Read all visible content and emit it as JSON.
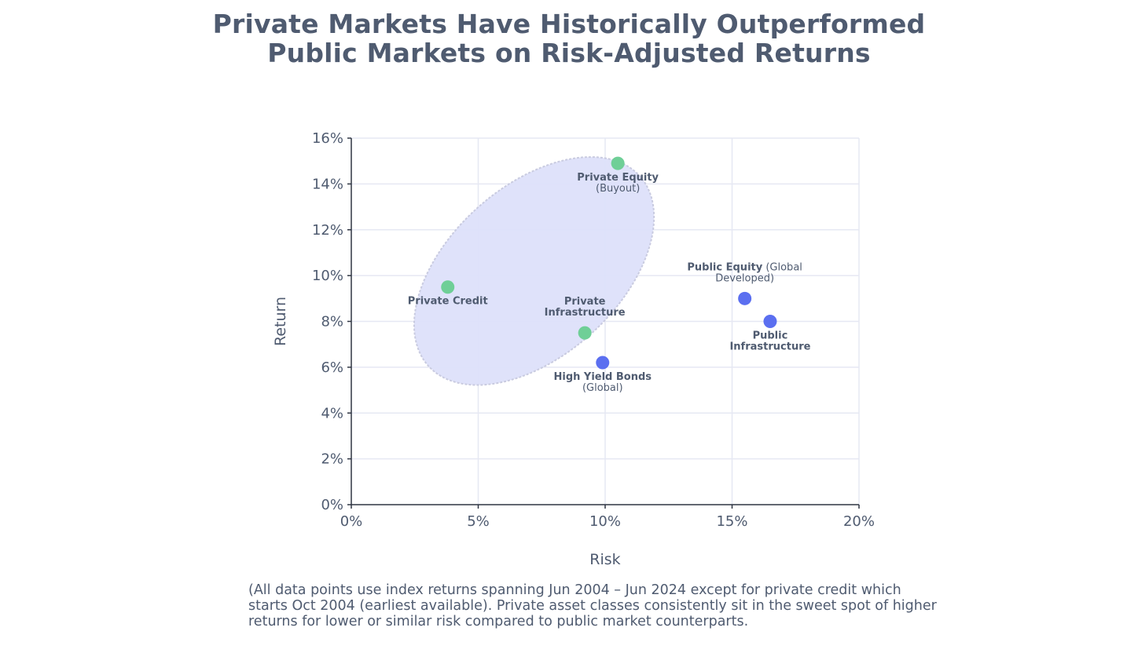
{
  "title": {
    "line1": "Private Markets Have Historically Outperformed",
    "line2": "Public Markets on Risk-Adjusted Returns"
  },
  "footnote": "(All data points use index returns spanning Jun 2004 – Jun 2024 except for private credit which starts Oct 2004 (earliest available). Private asset classes consistently sit in the sweet spot of higher returns for lower or similar risk compared to public market counterparts.",
  "chart_data": {
    "type": "scatter",
    "xlabel": "Risk",
    "ylabel": "Return",
    "xlim": [
      0,
      20
    ],
    "ylim": [
      0,
      16
    ],
    "x_ticks": [
      0,
      5,
      10,
      15,
      20
    ],
    "y_ticks": [
      0,
      2,
      4,
      6,
      8,
      10,
      12,
      14,
      16
    ],
    "x_tick_labels": [
      "0%",
      "5%",
      "10%",
      "15%",
      "20%"
    ],
    "y_tick_labels": [
      "0%",
      "2%",
      "4%",
      "6%",
      "8%",
      "10%",
      "12%",
      "14%",
      "16%"
    ],
    "grid": true,
    "colors": {
      "private": "#6fcf97",
      "public": "#5b6ff0",
      "region": "#dde0fa",
      "region_border": "#c9cbe0",
      "grid": "#e6e8f3",
      "axis": "#2f3542",
      "text": "#4f5b70"
    },
    "points": [
      {
        "name": "Private Equity",
        "sub": "(Buyout)",
        "x": 10.5,
        "y": 14.9,
        "group": "private",
        "label_lines": [
          [
            "Private Equity",
            ""
          ],
          [
            "",
            "(Buyout)"
          ]
        ],
        "label_pos": "below"
      },
      {
        "name": "Private Credit",
        "sub": "",
        "x": 3.8,
        "y": 9.5,
        "group": "private",
        "label_lines": [
          [
            "Private Credit",
            ""
          ]
        ],
        "label_pos": "below"
      },
      {
        "name": "Private Infrastructure",
        "sub": "",
        "x": 9.2,
        "y": 7.5,
        "group": "private",
        "label_lines": [
          [
            "Private",
            ""
          ],
          [
            "Infrastructure",
            ""
          ]
        ],
        "label_pos": "above"
      },
      {
        "name": "High Yield Bonds",
        "sub": "(Global)",
        "x": 9.9,
        "y": 6.2,
        "group": "public",
        "label_lines": [
          [
            "High Yield Bonds",
            ""
          ],
          [
            "",
            "(Global)"
          ]
        ],
        "label_pos": "below"
      },
      {
        "name": "Public Equity",
        "sub": "(Global Developed)",
        "x": 15.5,
        "y": 9.0,
        "group": "public",
        "label_lines": [
          [
            "Public Equity",
            " (Global"
          ],
          [
            "",
            "Developed)"
          ]
        ],
        "label_pos": "above"
      },
      {
        "name": "Public Infrastructure",
        "sub": "",
        "x": 16.5,
        "y": 8.0,
        "group": "public",
        "label_lines": [
          [
            "Public",
            ""
          ],
          [
            "Infrastructure",
            ""
          ]
        ],
        "label_pos": "below"
      }
    ],
    "highlight_region": {
      "shape": "ellipse",
      "cx": 7.2,
      "cy": 10.2,
      "rx": 5.6,
      "ry": 3.7,
      "rotation_deg": -42
    }
  }
}
